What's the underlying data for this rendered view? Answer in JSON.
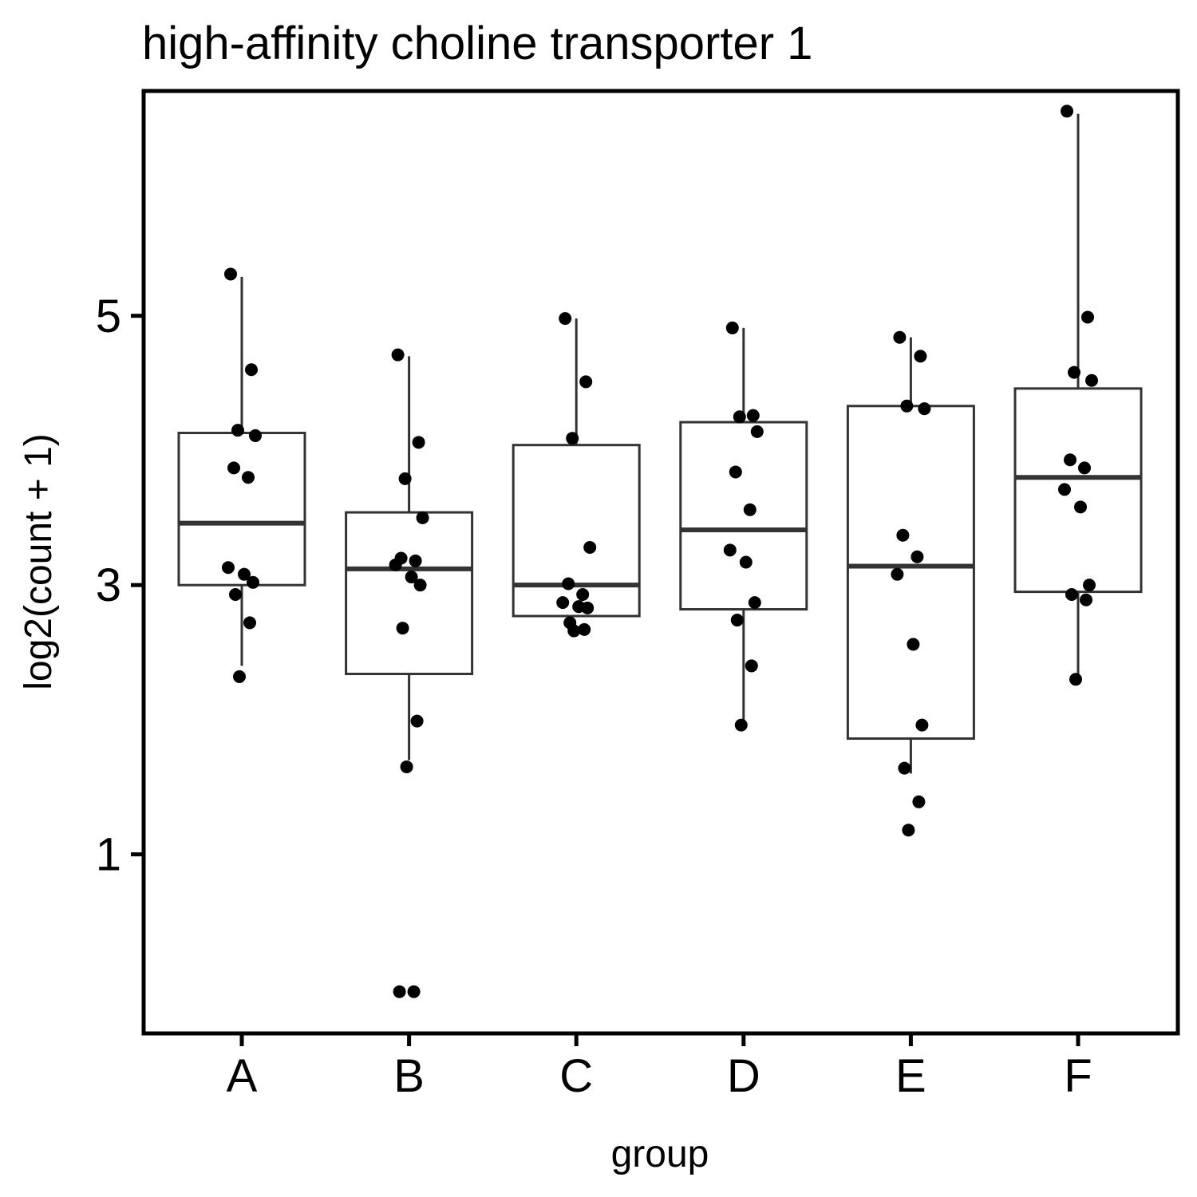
{
  "chart_data": {
    "type": "box",
    "title": "high-affinity choline transporter 1",
    "xlabel": "group",
    "ylabel": "log2(count + 1)",
    "ylim": [
      -0.33,
      6.67
    ],
    "yticks": [
      1,
      3,
      5
    ],
    "grid": false,
    "legend": "none",
    "categories": [
      "A",
      "B",
      "C",
      "D",
      "E",
      "F"
    ],
    "boxes": [
      {
        "group": "A",
        "q1": 3.0,
        "median": 3.46,
        "q3": 4.13,
        "whisker_low": 2.4,
        "whisker_high": 5.29
      },
      {
        "group": "B",
        "q1": 2.34,
        "median": 3.12,
        "q3": 3.54,
        "whisker_low": 1.7,
        "whisker_high": 4.7
      },
      {
        "group": "C",
        "q1": 2.77,
        "median": 3.0,
        "q3": 4.04,
        "whisker_low": 2.77,
        "whisker_high": 4.98
      },
      {
        "group": "D",
        "q1": 2.82,
        "median": 3.41,
        "q3": 4.21,
        "whisker_low": 2.0,
        "whisker_high": 4.91
      },
      {
        "group": "E",
        "q1": 1.86,
        "median": 3.14,
        "q3": 4.33,
        "whisker_low": 1.6,
        "whisker_high": 4.84
      },
      {
        "group": "F",
        "q1": 2.95,
        "median": 3.8,
        "q3": 4.46,
        "whisker_low": 2.32,
        "whisker_high": 6.5
      }
    ],
    "points": [
      {
        "group": "A",
        "y": [
          5.31,
          4.6,
          4.15,
          4.11,
          3.87,
          3.8,
          3.13,
          3.08,
          3.02,
          2.93,
          2.72,
          2.32
        ]
      },
      {
        "group": "B",
        "y": [
          4.71,
          4.06,
          3.79,
          3.5,
          3.2,
          3.18,
          3.15,
          3.06,
          3.0,
          2.68,
          1.99,
          1.65,
          -0.02,
          -0.02
        ]
      },
      {
        "group": "C",
        "y": [
          4.98,
          4.51,
          4.09,
          3.28,
          3.01,
          2.93,
          2.87,
          2.84,
          2.83,
          2.72,
          2.67,
          2.66
        ]
      },
      {
        "group": "D",
        "y": [
          4.91,
          4.26,
          4.25,
          4.14,
          3.84,
          3.56,
          3.26,
          3.17,
          2.87,
          2.74,
          2.4,
          1.96
        ]
      },
      {
        "group": "E",
        "y": [
          4.84,
          4.7,
          4.33,
          4.31,
          3.37,
          3.21,
          3.08,
          2.56,
          1.96,
          1.64,
          1.39,
          1.18
        ]
      },
      {
        "group": "F",
        "y": [
          6.52,
          4.99,
          4.58,
          4.52,
          3.93,
          3.87,
          3.71,
          3.58,
          3.0,
          2.93,
          2.89,
          2.3
        ]
      }
    ]
  }
}
